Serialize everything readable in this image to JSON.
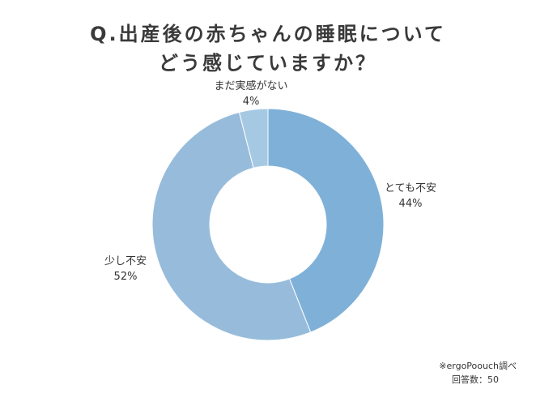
{
  "title_lines": [
    "Q.出産後の赤ちゃんの睡眠について",
    "どう感じていますか？"
  ],
  "chart_data": {
    "type": "pie",
    "donut": true,
    "categories": [
      "とても不安",
      "少し不安",
      "まだ実感がない"
    ],
    "values": [
      44,
      52,
      4
    ],
    "value_labels": [
      "44%",
      "52%",
      "4%"
    ],
    "colors": [
      "#7fb1d8",
      "#97bcdb",
      "#a6c9e3"
    ]
  },
  "source": [
    "※ergoPoouch調べ",
    "回答数：50"
  ]
}
